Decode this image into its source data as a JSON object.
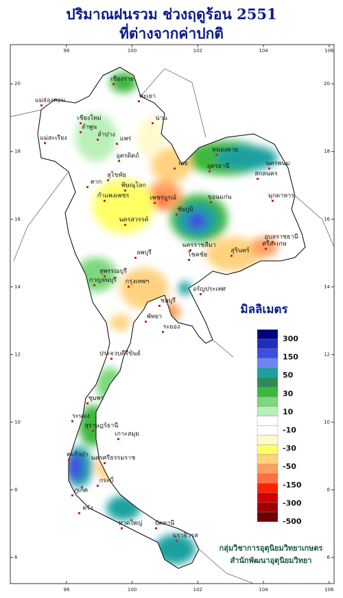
{
  "title": [
    "ปริมาณฝนรวม ช่วงฤดูร้อน 2551",
    "ที่ต่างจากค่าปกติ"
  ],
  "axes": {
    "xlim": [
      96.29,
      106.15
    ],
    "ylim": [
      5.23,
      21.16
    ],
    "xticks": [
      98,
      100,
      102,
      104,
      106
    ],
    "yticks": [
      6,
      8,
      10,
      12,
      14,
      16,
      18,
      20
    ]
  },
  "legend": {
    "title": "มิลลิเมตร",
    "labels": [
      300,
      150,
      50,
      30,
      10,
      -10,
      -30,
      -50,
      -150,
      -300,
      -500
    ],
    "colors": [
      "#000080",
      "#1e2fbf",
      "#3c50e0",
      "#6e86f0",
      "#1aa0a0",
      "#2e8b57",
      "#3cb83c",
      "#7dd87d",
      "#b8f0b8",
      "#ffffff",
      "#ffffff",
      "#fffacd",
      "#ffff66",
      "#ffd27f",
      "#ffa060",
      "#ff7043",
      "#ff2000",
      "#d00000",
      "#a00000",
      "#700000"
    ]
  },
  "credit": [
    "กลุ่มวิชาการอุตุนิยมวิทยาเกษตร",
    "สำนักพัฒนาอุตุนิยมวิทยา"
  ],
  "labels": [
    "เชียงราย",
    "แม่ฮ่องสอน",
    "พะเยา",
    "เชียงใหม่",
    "ลำพูน",
    "น่าน",
    "ลำปาง",
    "แพร่",
    "แม่สะเรียง",
    "อุตรดิตถ์",
    "ตาก",
    "สุโขทัย",
    "พิษณุโลก",
    "เพชรบูรณ์",
    "เลย",
    "หนองคาย",
    "อุดรธานี",
    "สกลนคร",
    "นครพนม",
    "มุกดาหาร",
    "ขอนแก่น",
    "ชัยภูมิ",
    "กำแพงเพชร",
    "นครสวรรค์",
    "ลพบุรี",
    "นครราชสีมา",
    "โชคชัย",
    "สุรินทร์",
    "ศรีสะเกษ",
    "อุบลราชธานี",
    "กาญจนบุรี",
    "สุพรรณบุรี",
    "กรุงเทพฯ",
    "อรัญประเทศ",
    "ชลบุรี",
    "พัทยา",
    "ระยอง",
    "ประจวบคีรีขันธ์",
    "ชุมพร",
    "ระนอง",
    "สุราษฎร์ธานี",
    "เกาะสมุย",
    "ตะกั่วป่า",
    "นครศรีธรรมราช",
    "ภูเก็ต",
    "กระบี่",
    "ตรัง",
    "หาดใหญ่",
    "ปัตตานี",
    "นราธิวาส"
  ]
}
